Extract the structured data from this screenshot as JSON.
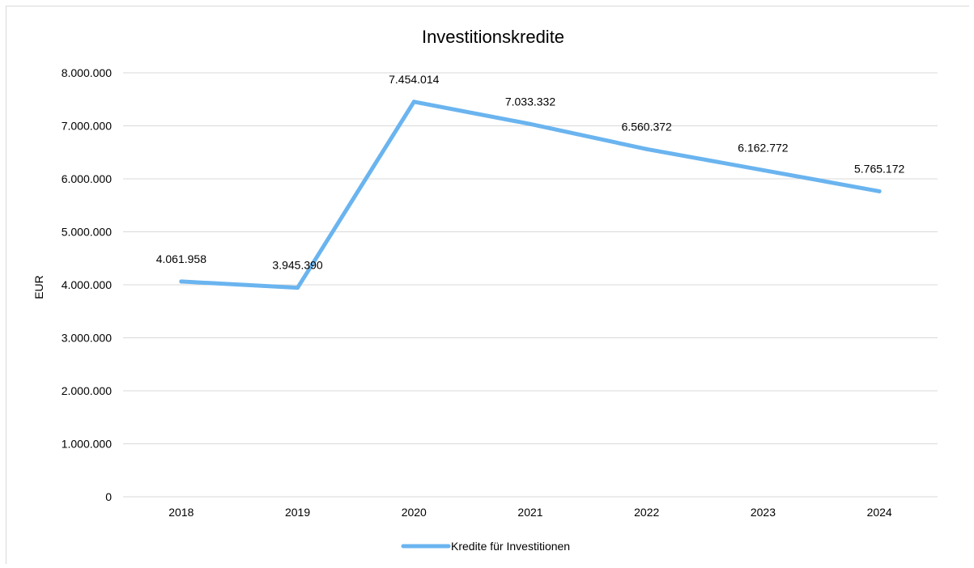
{
  "chart_data": {
    "type": "line",
    "title": "Investitionskredite",
    "xlabel": "",
    "ylabel": "EUR",
    "categories": [
      "2018",
      "2019",
      "2020",
      "2021",
      "2022",
      "2023",
      "2024"
    ],
    "series": [
      {
        "name": "Kredite für Investitionen",
        "values": [
          4061958,
          3945390,
          7454014,
          7033332,
          6560372,
          6162772,
          5765172
        ],
        "labels": [
          "4.061.958",
          "3.945.390",
          "7.454.014",
          "7.033.332",
          "6.560.372",
          "6.162.772",
          "5.765.172"
        ],
        "color": "#6ab4ef"
      }
    ],
    "ylim": [
      0,
      8000000
    ],
    "yticks": [
      0,
      1000000,
      2000000,
      3000000,
      4000000,
      5000000,
      6000000,
      7000000,
      8000000
    ],
    "ytick_labels": [
      "0",
      "1.000.000",
      "2.000.000",
      "3.000.000",
      "4.000.000",
      "5.000.000",
      "6.000.000",
      "7.000.000",
      "8.000.000"
    ],
    "grid": true,
    "gridColor": "#d9d9d9",
    "legend_position": "bottom"
  }
}
